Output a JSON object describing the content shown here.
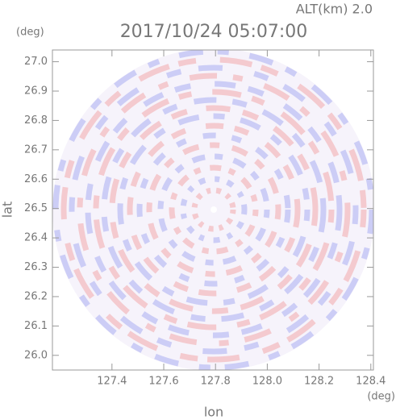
{
  "chart_data": {
    "type": "ppi",
    "title": "2017/10/24 05:07:00",
    "annotation": "ALT(km) 2.0",
    "x_label": "lon",
    "y_label": "lat",
    "x_unit": "(deg)",
    "y_unit": "(deg)",
    "xlim": [
      127.17,
      128.41
    ],
    "ylim": [
      25.95,
      27.04
    ],
    "xticks": [
      127.4,
      127.6,
      127.8,
      {
        "value": 128.0,
        "label": "128.0"
      },
      128.2,
      128.4
    ],
    "yticks": [
      {
        "value": 26.0,
        "label": "26.0"
      },
      26.1,
      26.2,
      26.3,
      26.4,
      26.5,
      26.6,
      26.7,
      26.8,
      26.9,
      {
        "value": 27.0,
        "label": "27.0"
      }
    ]
  }
}
